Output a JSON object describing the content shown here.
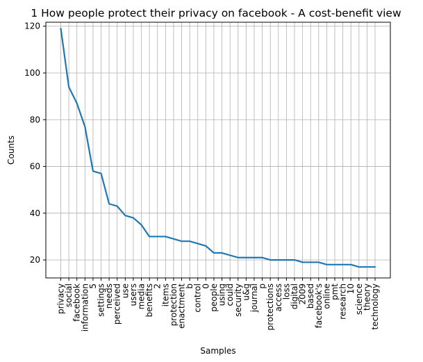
{
  "chart_data": {
    "type": "line",
    "title": "1 How people protect their privacy on facebook - A cost-benefit view",
    "xlabel": "Samples",
    "ylabel": "Counts",
    "ylim": [
      12.3,
      121.7
    ],
    "yticks": [
      20,
      40,
      60,
      80,
      100,
      120
    ],
    "grid": true,
    "categories": [
      "privacy",
      "social",
      "facebook",
      "information",
      "5",
      "settings",
      "needs",
      "perceived",
      "use",
      "users",
      "media",
      "benefits",
      "2",
      "items",
      "protection",
      "enactment",
      "b",
      "control",
      "0",
      "people",
      "using",
      "could",
      "security",
      "u&g",
      "journal",
      "p",
      "protections",
      "access",
      "loss",
      "digital",
      "2009",
      "based",
      "facebook's",
      "online",
      "pmt",
      "research",
      "10",
      "science",
      "theory",
      "technology"
    ],
    "series": [
      {
        "values": [
          119,
          94,
          87,
          77,
          58,
          57,
          44,
          43,
          39,
          38,
          35,
          30,
          30,
          30,
          29,
          28,
          28,
          27,
          26,
          23,
          23,
          22,
          21,
          21,
          21,
          21,
          20,
          20,
          20,
          20,
          19,
          19,
          19,
          18,
          18,
          18,
          18,
          17,
          17,
          17
        ],
        "color": "#1f77b4"
      }
    ]
  }
}
